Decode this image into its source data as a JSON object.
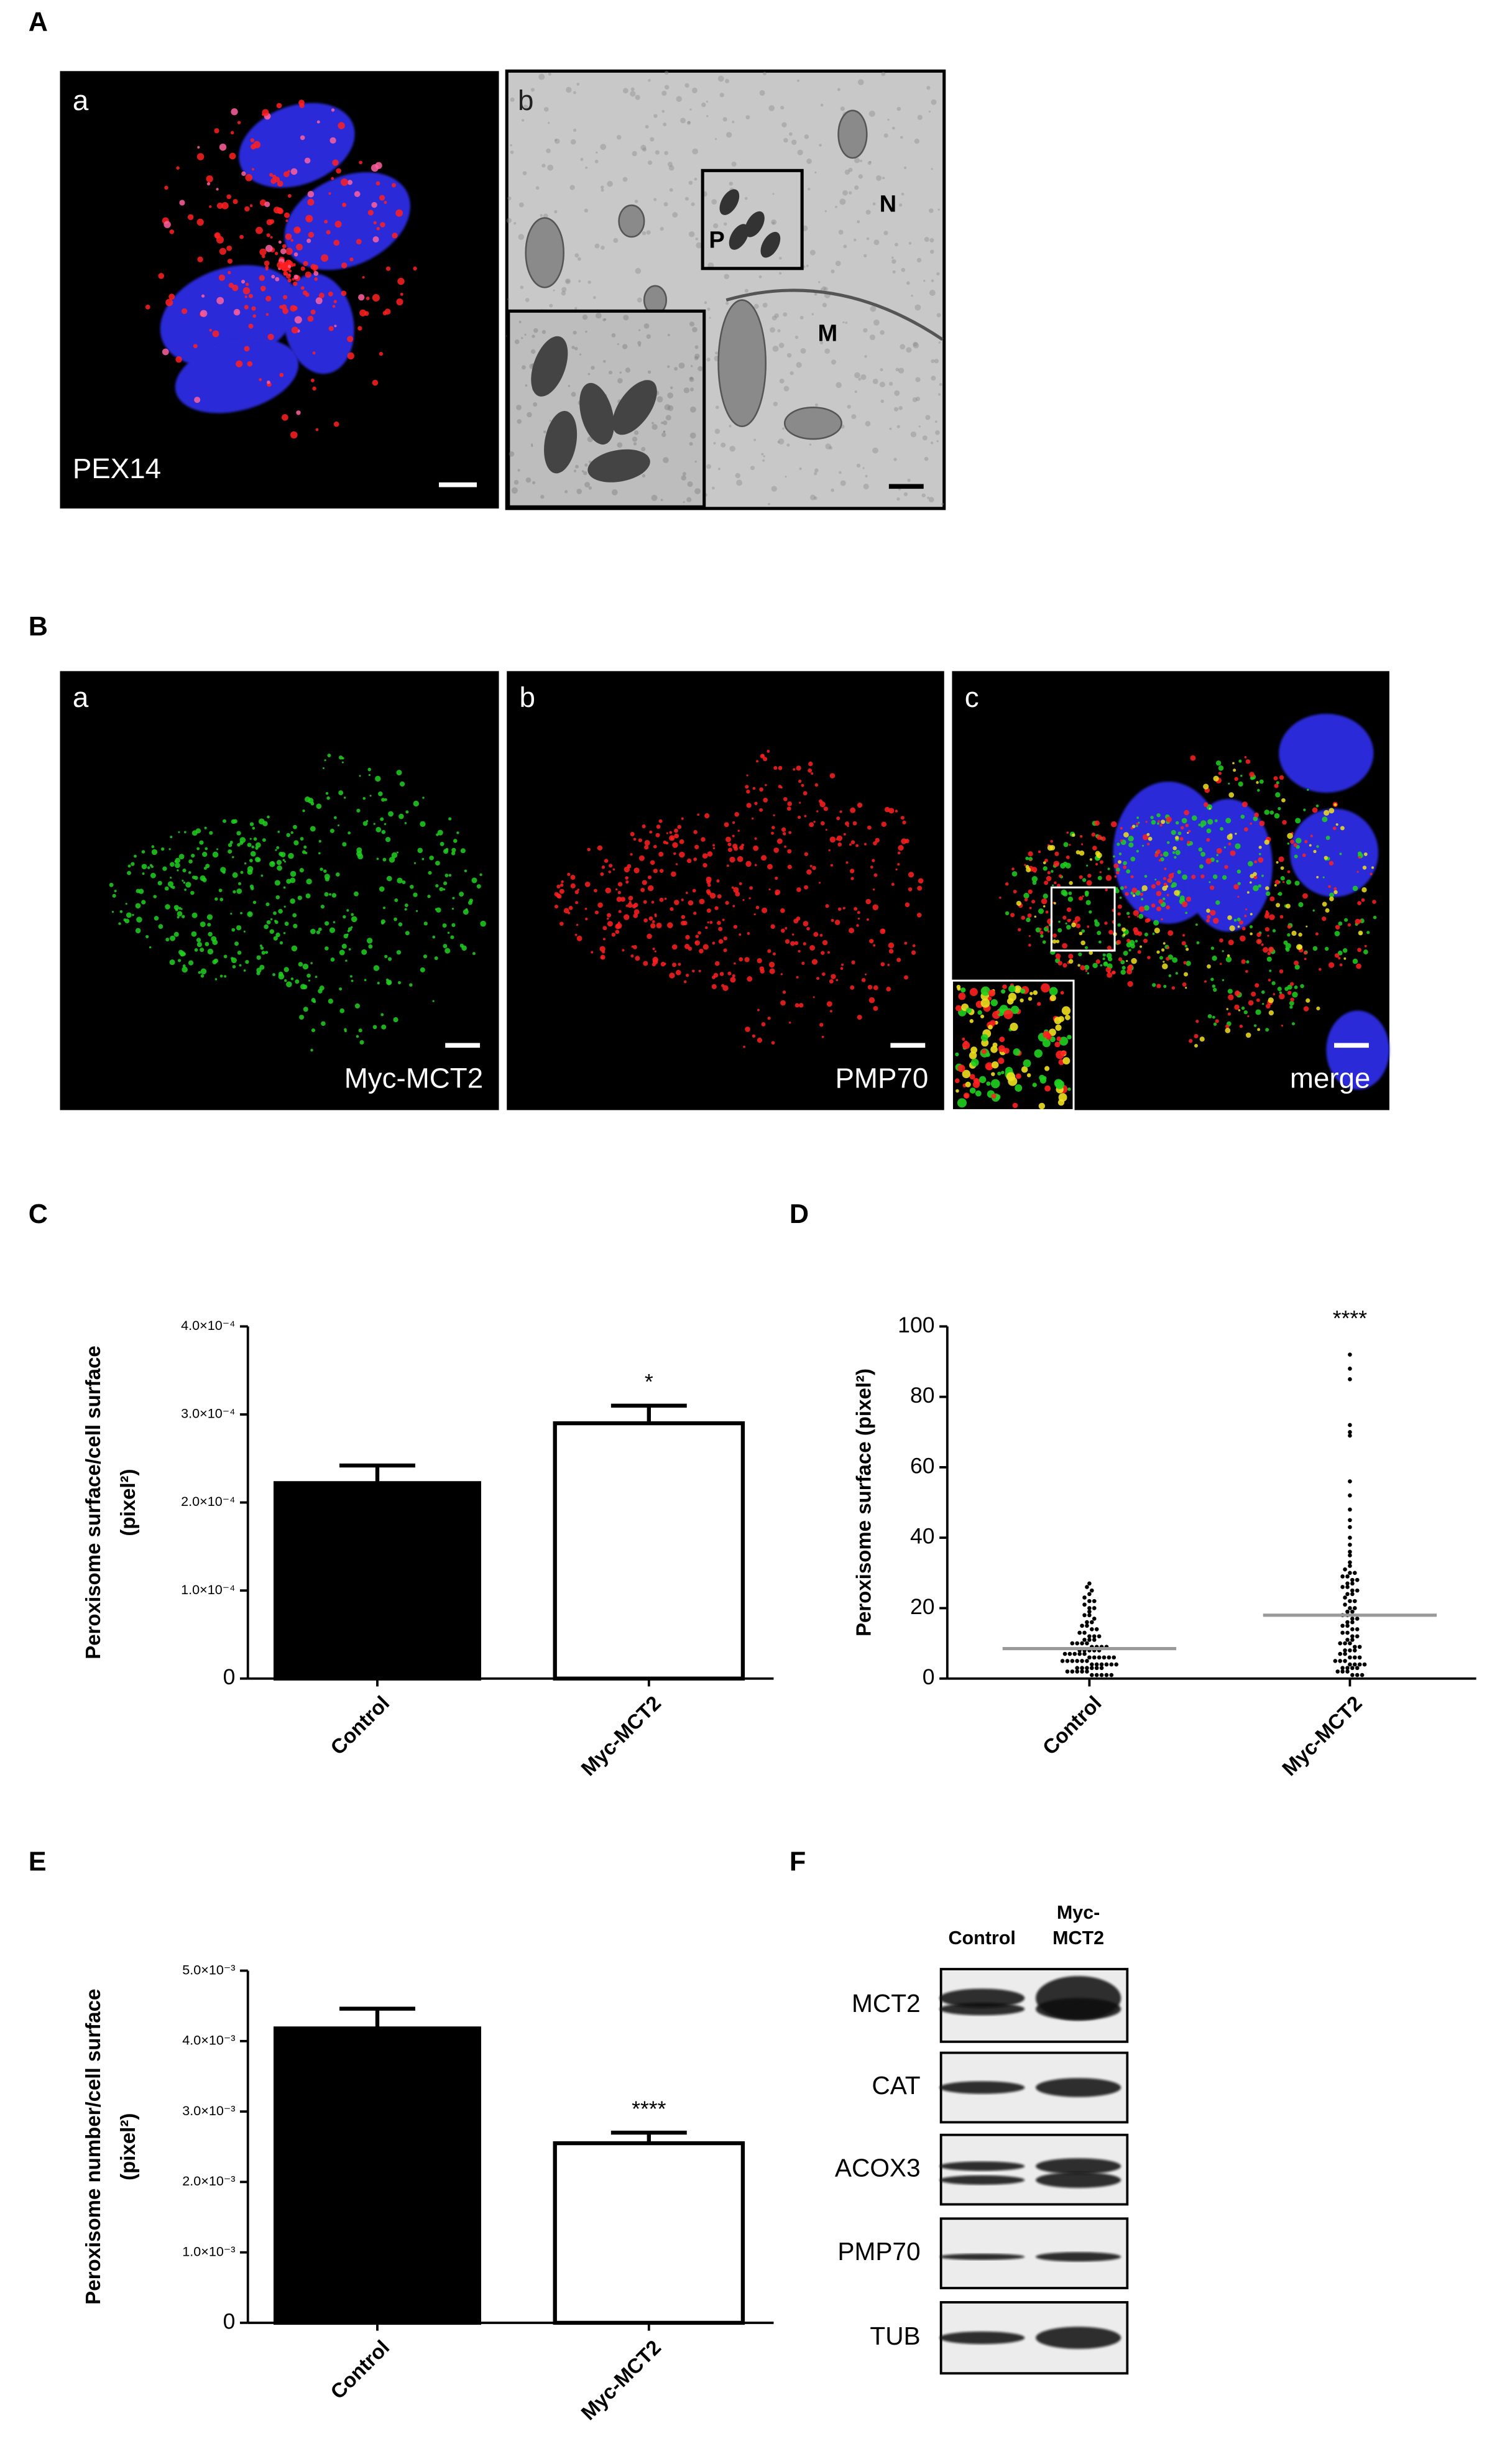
{
  "figure": {
    "panel_labels": [
      "A",
      "B",
      "C",
      "D",
      "E",
      "F"
    ],
    "panel_A": {
      "a_label": "a",
      "b_label": "b",
      "stain": "PEX14",
      "P": "P",
      "N": "N",
      "M": "M"
    },
    "panel_B": {
      "a_label": "a",
      "b_label": "b",
      "c_label": "c",
      "a_stain": "Myc-MCT2",
      "b_stain": "PMP70",
      "c_stain": "merge"
    },
    "panel_F": {
      "columns": [
        [
          "Control"
        ],
        [
          "Myc-",
          "MCT2"
        ]
      ],
      "rows": [
        "MCT2",
        "CAT",
        "ACOX3",
        "PMP70",
        "TUB"
      ]
    }
  },
  "chart_data": [
    {
      "type": "bar",
      "categories": [
        "Control",
        "Myc-MCT2"
      ],
      "values": [
        0.000222,
        0.00029
      ],
      "errors": [
        2e-05,
        2e-05
      ],
      "colors": [
        "#000000",
        "#ffffff"
      ],
      "ylabel": [
        "Peroxisome surface/cell surface",
        "(pixel²)"
      ],
      "ylim": [
        0,
        0.0004
      ],
      "yticks": [
        0,
        {
          "value": 0.0001,
          "label": "1.0×10⁻⁴"
        },
        {
          "value": 0.0002,
          "label": "2.0×10⁻⁴"
        },
        {
          "value": 0.0003,
          "label": "3.0×10⁻⁴"
        },
        {
          "value": 0.0004,
          "label": "4.0×10⁻⁴"
        }
      ],
      "annotation": "*",
      "annotation_category": "Myc-MCT2"
    },
    {
      "type": "dotplot",
      "categories": [
        "Control",
        "Myc-MCT2"
      ],
      "groups": [
        [
          27,
          26,
          25,
          24,
          23,
          22,
          22,
          21,
          20,
          20,
          19,
          18,
          18,
          17,
          16,
          16,
          15,
          15,
          14,
          14,
          13,
          13,
          12,
          12,
          12,
          11,
          11,
          11,
          10,
          10,
          10,
          10,
          9,
          9,
          9,
          9,
          8,
          8,
          8,
          8,
          8,
          7,
          7,
          7,
          7,
          7,
          6,
          6,
          6,
          6,
          6,
          6,
          5,
          5,
          5,
          5,
          5,
          5,
          4,
          4,
          4,
          4,
          4,
          4,
          3,
          3,
          3,
          3,
          3,
          3,
          2,
          2,
          2,
          2,
          2,
          1,
          1,
          1,
          1,
          1
        ],
        [
          92,
          88,
          85,
          72,
          70,
          69,
          56,
          52,
          48,
          45,
          43,
          40,
          38,
          36,
          35,
          33,
          32,
          31,
          30,
          30,
          29,
          29,
          28,
          28,
          27,
          27,
          26,
          26,
          25,
          25,
          24,
          24,
          23,
          22,
          22,
          21,
          20,
          20,
          19,
          19,
          18,
          18,
          17,
          17,
          16,
          16,
          15,
          15,
          14,
          14,
          13,
          13,
          12,
          12,
          11,
          11,
          10,
          10,
          10,
          9,
          9,
          8,
          8,
          8,
          7,
          7,
          6,
          6,
          6,
          5,
          5,
          5,
          4,
          4,
          4,
          4,
          3,
          3,
          3,
          3,
          2,
          2,
          2,
          1,
          1,
          1
        ]
      ],
      "means": [
        8.5,
        18
      ],
      "mean_color": "#999999",
      "ylabel": "Peroxisome surface (pixel²)",
      "ylim": [
        0,
        100
      ],
      "yticks": [
        0,
        20,
        40,
        60,
        80,
        100
      ],
      "annotation": "****",
      "annotation_category": "Myc-MCT2"
    },
    {
      "type": "bar",
      "categories": [
        "Control",
        "Myc-MCT2"
      ],
      "values": [
        0.00418,
        0.00255
      ],
      "errors": [
        0.00028,
        0.00015
      ],
      "colors": [
        "#000000",
        "#ffffff"
      ],
      "ylabel": [
        "Peroxisome number/cell surface",
        "(pixel²)"
      ],
      "ylim": [
        0,
        0.005
      ],
      "yticks": [
        0,
        {
          "value": 0.001,
          "label": "1.0×10⁻³"
        },
        {
          "value": 0.002,
          "label": "2.0×10⁻³"
        },
        {
          "value": 0.003,
          "label": "3.0×10⁻³"
        },
        {
          "value": 0.004,
          "label": "4.0×10⁻³"
        },
        {
          "value": 0.005,
          "label": "5.0×10⁻³"
        }
      ],
      "annotation": "****",
      "annotation_category": "Myc-MCT2"
    }
  ]
}
